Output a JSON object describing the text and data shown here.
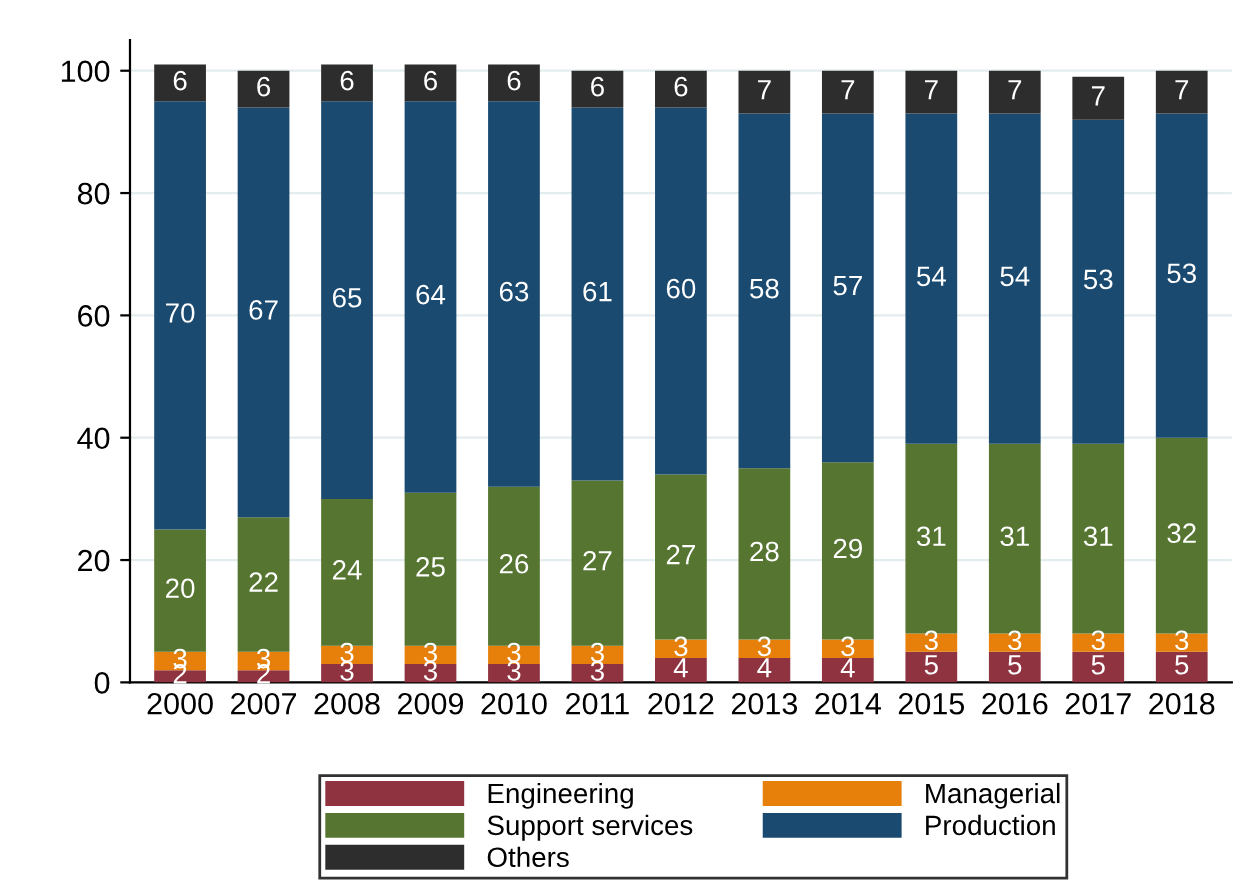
{
  "chart_data": {
    "type": "bar",
    "stacked": true,
    "data_labels": true,
    "grid": "y",
    "legend": "bottom",
    "categories": [
      "2000",
      "2007",
      "2008",
      "2009",
      "2010",
      "2011",
      "2012",
      "2013",
      "2014",
      "2015",
      "2016",
      "2017",
      "2018"
    ],
    "series": [
      {
        "name": "Engineering",
        "color": "#8f3340",
        "values": [
          2,
          2,
          3,
          3,
          3,
          3,
          4,
          4,
          4,
          5,
          5,
          5,
          5
        ]
      },
      {
        "name": "Managerial",
        "color": "#e6800a",
        "values": [
          3,
          3,
          3,
          3,
          3,
          3,
          3,
          3,
          3,
          3,
          3,
          3,
          3
        ]
      },
      {
        "name": "Support services",
        "color": "#557530",
        "values": [
          20,
          22,
          24,
          25,
          26,
          27,
          27,
          28,
          29,
          31,
          31,
          31,
          32
        ]
      },
      {
        "name": "Production",
        "color": "#1b4a70",
        "values": [
          70,
          67,
          65,
          64,
          63,
          61,
          60,
          58,
          57,
          54,
          54,
          53,
          53
        ]
      },
      {
        "name": "Others",
        "color": "#2d2d2d",
        "values": [
          6,
          6,
          6,
          6,
          6,
          6,
          6,
          7,
          7,
          7,
          7,
          7,
          7
        ]
      }
    ],
    "ylim": [
      0,
      105
    ],
    "yticks": [
      0,
      20,
      40,
      60,
      80,
      100
    ]
  }
}
